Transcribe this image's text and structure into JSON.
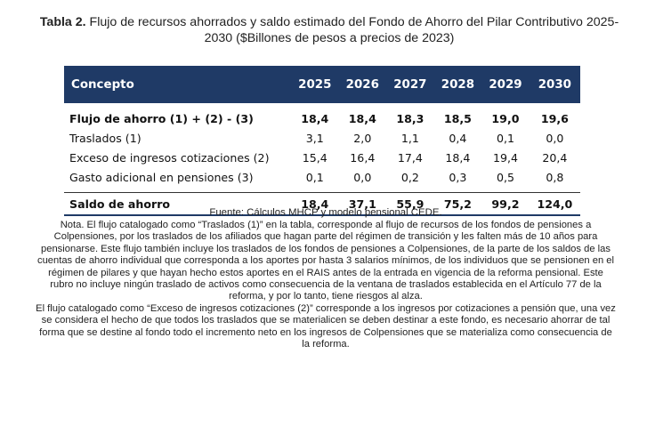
{
  "caption": {
    "label": "Tabla 2.",
    "text": "Flujo de recursos ahorrados y saldo estimado del Fondo de Ahorro del Pilar Contributivo  2025-2030 ($Billones de pesos a precios de 2023)"
  },
  "table": {
    "header": {
      "concept": "Concepto",
      "years": [
        "2025",
        "2026",
        "2027",
        "2028",
        "2029",
        "2030"
      ]
    },
    "rows": [
      {
        "concept": "Flujo de ahorro (1) + (2) - (3)",
        "values": [
          "18,4",
          "18,4",
          "18,3",
          "18,5",
          "19,0",
          "19,6"
        ]
      },
      {
        "concept": "Traslados (1)",
        "values": [
          "3,1",
          "2,0",
          "1,1",
          "0,4",
          "0,1",
          "0,0"
        ]
      },
      {
        "concept": "Exceso de ingresos cotizaciones (2)",
        "values": [
          "15,4",
          "16,4",
          "17,4",
          "18,4",
          "19,4",
          "20,4"
        ]
      },
      {
        "concept": "Gasto adicional en pensiones (3)",
        "values": [
          "0,1",
          "0,0",
          "0,2",
          "0,3",
          "0,5",
          "0,8"
        ]
      }
    ],
    "total": {
      "concept": "Saldo de ahorro",
      "values": [
        "18,4",
        "37,1",
        "55,9",
        "75,2",
        "99,2",
        "124,0"
      ]
    }
  },
  "source": "Fuente: Cálculos MHCP y modelo pensional CEDE.",
  "notes": [
    "Nota. El flujo catalogado como “Traslados (1)” en la tabla, corresponde al flujo de recursos de los fondos de pensiones a Colpensiones, por los traslados de los afiliados que hagan parte del régimen de transición y les falten más de 10 años para pensionarse. Este flujo también incluye los traslados de los fondos de pensiones a Colpensiones, de la parte de los saldos de las cuentas de ahorro individual que corresponda a los aportes por hasta 3 salarios mínimos, de los individuos que se pensionen en el régimen de pilares y que hayan hecho estos aportes en el RAIS antes de la entrada en vigencia de la reforma pensional. Este rubro no incluye ningún traslado de activos como consecuencia de la ventana de traslados establecida en el Artículo 77 de la reforma, y por lo tanto, tiene riesgos al alza.",
    "El flujo catalogado como “Exceso de ingresos cotizaciones (2)” corresponde a los ingresos por cotizaciones a pensión que, una vez se considera el hecho de que todos los traslados que se materialicen se deben destinar a este fondo, es necesario ahorrar de tal forma que se destine al fondo todo el incremento neto en los ingresos de Colpensiones que se materializa como consecuencia de la reforma."
  ],
  "colors": {
    "header_bg": "#1f3a66",
    "header_text": "#ffffff"
  }
}
